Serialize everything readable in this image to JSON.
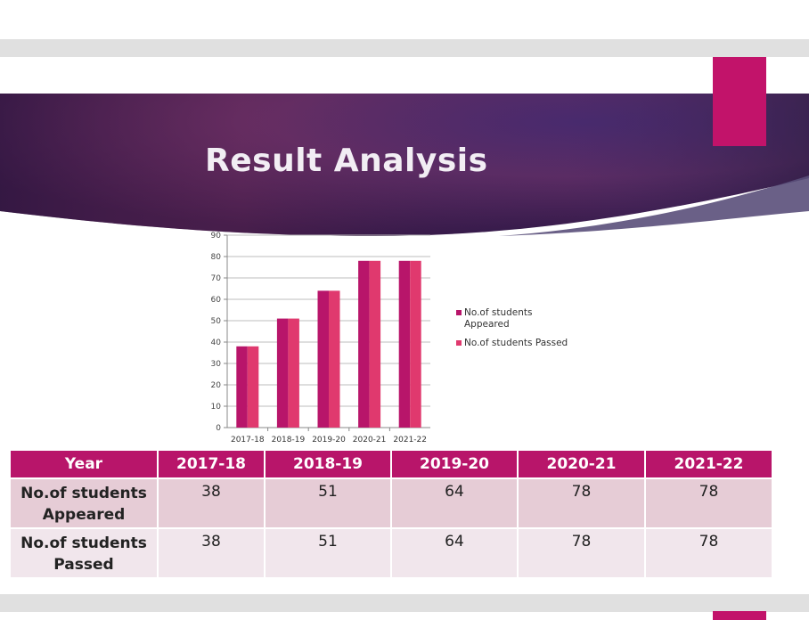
{
  "slide": {
    "title": "Result Analysis",
    "colors": {
      "accent": "#c2136a",
      "banner_dark": "#3a1d55",
      "banner_mid": "#6d2d66"
    }
  },
  "chart_data": {
    "type": "bar",
    "categories": [
      "2017-18",
      "2018-19",
      "2019-20",
      "2020-21",
      "2021-22"
    ],
    "series": [
      {
        "name": "No.of students Appeared",
        "values": [
          38,
          51,
          64,
          78,
          78
        ],
        "color": "#b8156a"
      },
      {
        "name": "No.of students Passed",
        "values": [
          38,
          51,
          64,
          78,
          78
        ],
        "color": "#e0396e"
      }
    ],
    "yticks": [
      0,
      10,
      20,
      30,
      40,
      50,
      60,
      70,
      80,
      90
    ],
    "ylim": [
      0,
      90
    ],
    "grid": true,
    "legend": "right"
  },
  "table": {
    "header": [
      "Year",
      "2017-18",
      "2018-19",
      "2019-20",
      "2020-21",
      "2021-22"
    ],
    "rows": [
      {
        "label": "No.of students Appeared",
        "values": [
          "38",
          "51",
          "64",
          "78",
          "78"
        ]
      },
      {
        "label": "No.of students Passed",
        "values": [
          "38",
          "51",
          "64",
          "78",
          "78"
        ]
      }
    ]
  }
}
